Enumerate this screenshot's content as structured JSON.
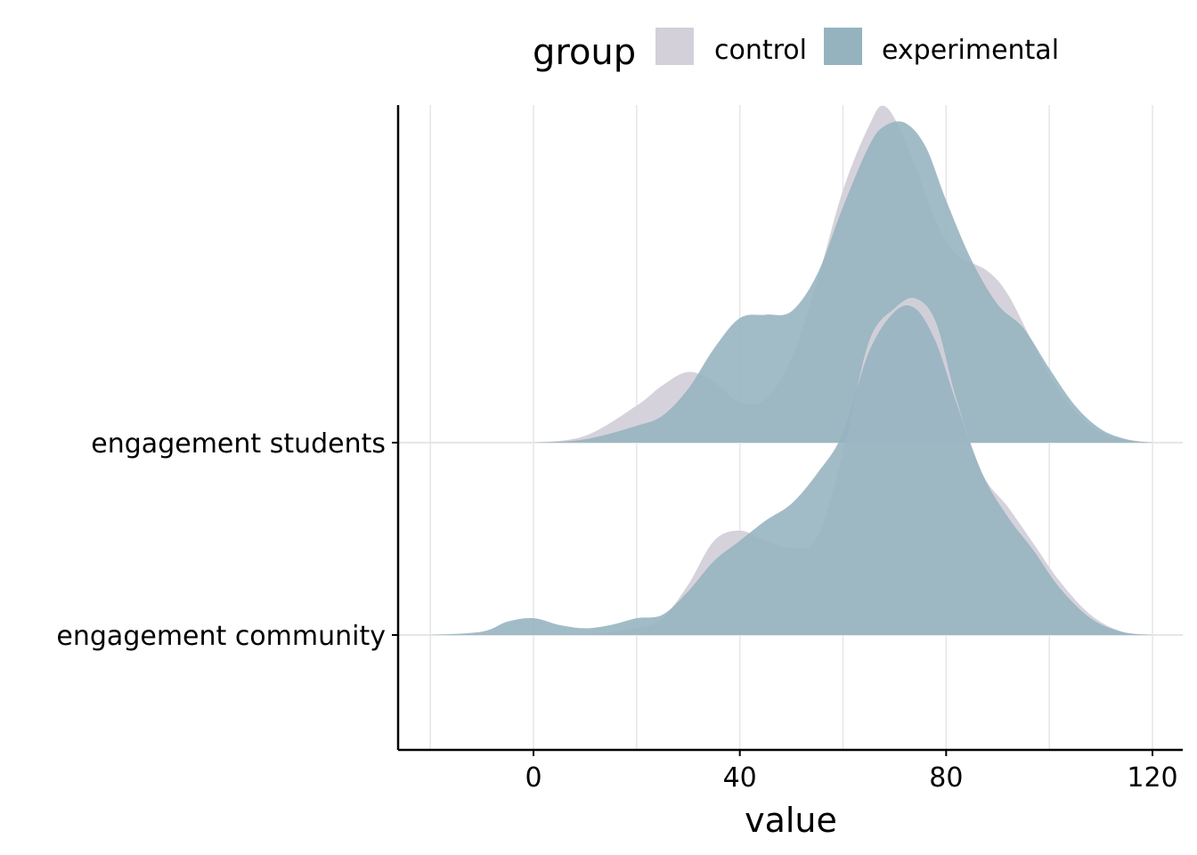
{
  "chart_data": {
    "type": "area",
    "subtype": "ridgeline",
    "xlabel": "value",
    "ylabel": "",
    "xlim": [
      -25,
      128
    ],
    "x_ticks": [
      0,
      40,
      80,
      120
    ],
    "x_tick_labels": [
      "0",
      "40",
      "80",
      "120"
    ],
    "grid": true,
    "legend": {
      "title": "group",
      "placement": "top",
      "entries": [
        {
          "name": "control",
          "color": "#d3d0d9"
        },
        {
          "name": "experimental",
          "color": "#95b3bf"
        }
      ]
    },
    "rows": [
      {
        "name": "engagement students",
        "series": [
          {
            "name": "control",
            "x": [
              0,
              10,
              20,
              25,
              30,
              35,
              40,
              45,
              50,
              55,
              60,
              65,
              68,
              72,
              78,
              82,
              88,
              92,
              97,
              102,
              108,
              114,
              120
            ],
            "density": [
              0,
              0.02,
              0.11,
              0.17,
              0.21,
              0.18,
              0.12,
              0.13,
              0.25,
              0.48,
              0.75,
              0.94,
              1.0,
              0.9,
              0.66,
              0.56,
              0.51,
              0.44,
              0.29,
              0.15,
              0.05,
              0.01,
              0
            ]
          },
          {
            "name": "experimental",
            "x": [
              0,
              10,
              20,
              25,
              30,
              35,
              40,
              45,
              50,
              55,
              60,
              65,
              68,
              72,
              76,
              80,
              85,
              90,
              95,
              100,
              105,
              110,
              115,
              120
            ],
            "density": [
              0,
              0.01,
              0.05,
              0.08,
              0.16,
              0.28,
              0.37,
              0.38,
              0.39,
              0.5,
              0.7,
              0.88,
              0.94,
              0.95,
              0.88,
              0.72,
              0.54,
              0.41,
              0.34,
              0.22,
              0.11,
              0.04,
              0.01,
              0
            ]
          }
        ]
      },
      {
        "name": "engagement community",
        "series": [
          {
            "name": "control",
            "x": [
              10,
              20,
              25,
              30,
              35,
              40,
              45,
              50,
              55,
              60,
              65,
              70,
              74,
              78,
              82,
              87,
              92,
              97,
              102,
              108,
              114,
              120
            ],
            "density": [
              0,
              0.02,
              0.05,
              0.15,
              0.28,
              0.31,
              0.28,
              0.26,
              0.29,
              0.54,
              0.87,
              0.97,
              1.0,
              0.93,
              0.7,
              0.48,
              0.38,
              0.27,
              0.16,
              0.06,
              0.01,
              0
            ]
          },
          {
            "name": "experimental",
            "x": [
              -20,
              -10,
              -5,
              0,
              5,
              10,
              15,
              20,
              25,
              30,
              35,
              40,
              45,
              50,
              55,
              60,
              65,
              70,
              74,
              78,
              82,
              87,
              92,
              97,
              102,
              108,
              114,
              120
            ],
            "density": [
              0,
              0.01,
              0.04,
              0.05,
              0.03,
              0.02,
              0.03,
              0.05,
              0.06,
              0.13,
              0.22,
              0.28,
              0.34,
              0.39,
              0.48,
              0.6,
              0.84,
              0.96,
              0.97,
              0.87,
              0.69,
              0.48,
              0.35,
              0.25,
              0.14,
              0.05,
              0.01,
              0
            ]
          }
        ]
      }
    ]
  }
}
